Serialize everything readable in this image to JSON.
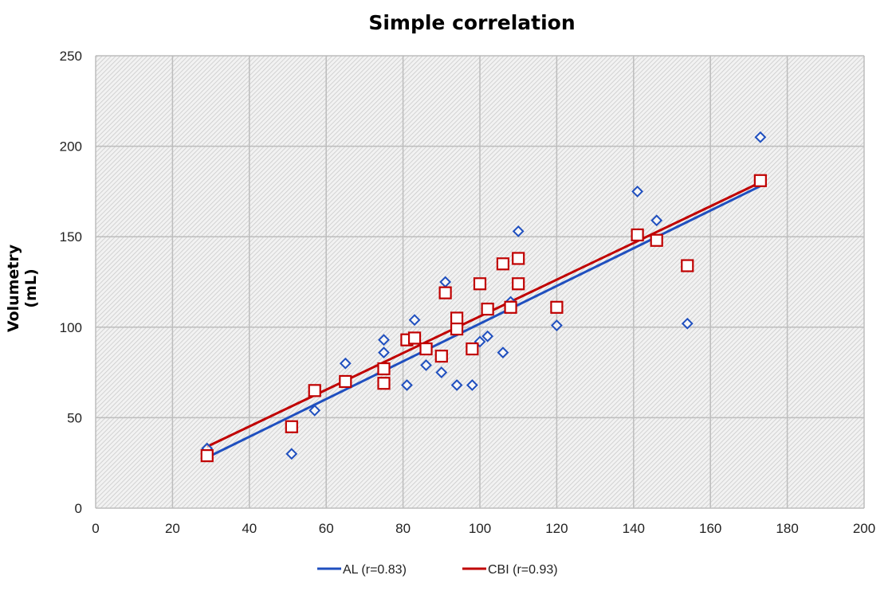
{
  "chart_data": {
    "type": "scatter",
    "title": "Simple correlation",
    "xlabel": "",
    "ylabel": "Volumetry (mL)",
    "xlim": [
      0,
      200
    ],
    "ylim": [
      0,
      250
    ],
    "xticks": [
      0,
      20,
      40,
      60,
      80,
      100,
      120,
      140,
      160,
      180,
      200
    ],
    "yticks": [
      0,
      50,
      100,
      150,
      200,
      250
    ],
    "grid": true,
    "legend_position": "bottom",
    "series": [
      {
        "name": "AL (r=0.83)",
        "color": "#1f4fbf",
        "marker": "diamond",
        "points": [
          [
            29,
            33
          ],
          [
            51,
            30
          ],
          [
            57,
            54
          ],
          [
            65,
            80
          ],
          [
            75,
            93
          ],
          [
            75,
            86
          ],
          [
            81,
            68
          ],
          [
            83,
            104
          ],
          [
            86,
            79
          ],
          [
            90,
            75
          ],
          [
            91,
            125
          ],
          [
            94,
            68
          ],
          [
            98,
            68
          ],
          [
            100,
            92
          ],
          [
            102,
            95
          ],
          [
            106,
            86
          ],
          [
            108,
            114
          ],
          [
            110,
            153
          ],
          [
            120,
            101
          ],
          [
            141,
            175
          ],
          [
            146,
            159
          ],
          [
            154,
            102
          ],
          [
            173,
            205
          ]
        ],
        "trendline": [
          [
            29,
            28
          ],
          [
            173,
            178
          ]
        ]
      },
      {
        "name": "CBI (r=0.93)",
        "color": "#c00000",
        "marker": "square",
        "points": [
          [
            29,
            29
          ],
          [
            51,
            45
          ],
          [
            57,
            65
          ],
          [
            65,
            70
          ],
          [
            75,
            77
          ],
          [
            75,
            69
          ],
          [
            81,
            93
          ],
          [
            83,
            94
          ],
          [
            86,
            88
          ],
          [
            90,
            84
          ],
          [
            91,
            119
          ],
          [
            94,
            105
          ],
          [
            94,
            99
          ],
          [
            98,
            88
          ],
          [
            100,
            124
          ],
          [
            102,
            110
          ],
          [
            106,
            135
          ],
          [
            108,
            111
          ],
          [
            110,
            138
          ],
          [
            110,
            124
          ],
          [
            120,
            111
          ],
          [
            141,
            151
          ],
          [
            146,
            148
          ],
          [
            154,
            134
          ],
          [
            173,
            181
          ]
        ],
        "trendline": [
          [
            29,
            34
          ],
          [
            173,
            180
          ]
        ]
      }
    ]
  }
}
